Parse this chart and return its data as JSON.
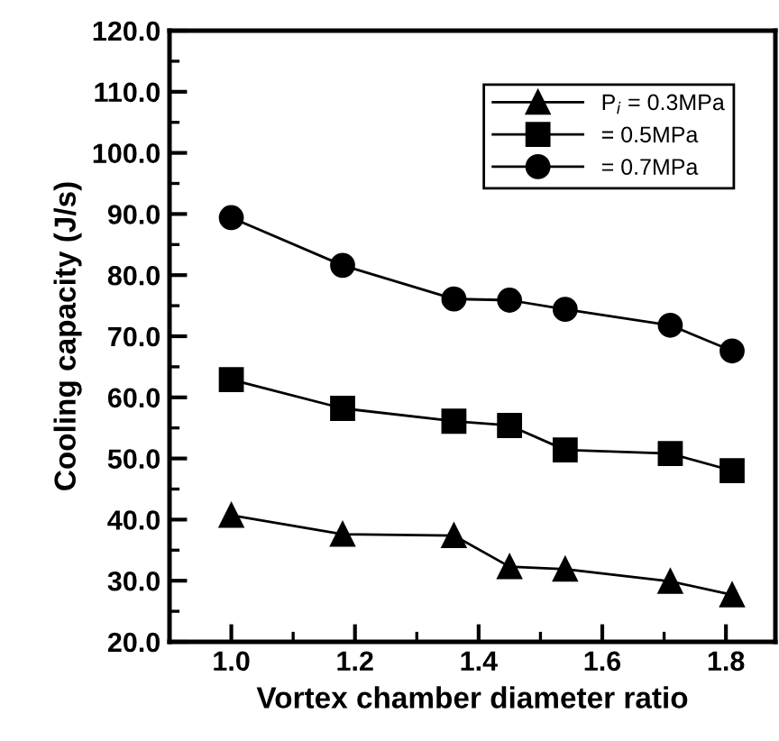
{
  "chart_data": {
    "type": "line",
    "xlabel": "Vortex chamber diameter ratio",
    "ylabel": "Cooling capacity (J/s)",
    "x": [
      1.0,
      1.18,
      1.36,
      1.45,
      1.54,
      1.71,
      1.81
    ],
    "series": [
      {
        "name": "P$_{i}$ = 0.3MPa",
        "color": "#000000",
        "marker": "triangle",
        "values": [
          40.7,
          37.6,
          37.4,
          32.3,
          31.9,
          29.9,
          27.7
        ]
      },
      {
        "name": "= 0.5MPa",
        "color": "#000000",
        "marker": "square",
        "values": [
          62.9,
          58.2,
          56.1,
          55.4,
          51.4,
          50.8,
          48.0
        ]
      },
      {
        "name": "= 0.7MPa",
        "color": "#000000",
        "marker": "circle",
        "values": [
          89.4,
          81.6,
          76.1,
          75.9,
          74.4,
          71.8,
          67.6
        ]
      }
    ],
    "xlim": [
      0.9,
      1.88
    ],
    "xticks": [
      {
        "value": 1.0,
        "label": "1.0"
      },
      1.2,
      1.4,
      1.6,
      1.8
    ],
    "ylim": [
      20,
      120
    ],
    "yticks": [
      {
        "value": 20,
        "label": "20.0"
      },
      {
        "value": 30,
        "label": "30.0"
      },
      {
        "value": 40,
        "label": "40.0"
      },
      {
        "value": 50,
        "label": "50.0"
      },
      {
        "value": 60,
        "label": "60.0"
      },
      {
        "value": 70,
        "label": "70.0"
      },
      {
        "value": 80,
        "label": "80.0"
      },
      {
        "value": 90,
        "label": "90.0"
      },
      {
        "value": 100,
        "label": "100.0"
      },
      {
        "value": 110,
        "label": "110.0"
      },
      {
        "value": 120,
        "label": "120.0"
      }
    ],
    "grid": false,
    "legend": "top right",
    "line_style": "solid"
  }
}
